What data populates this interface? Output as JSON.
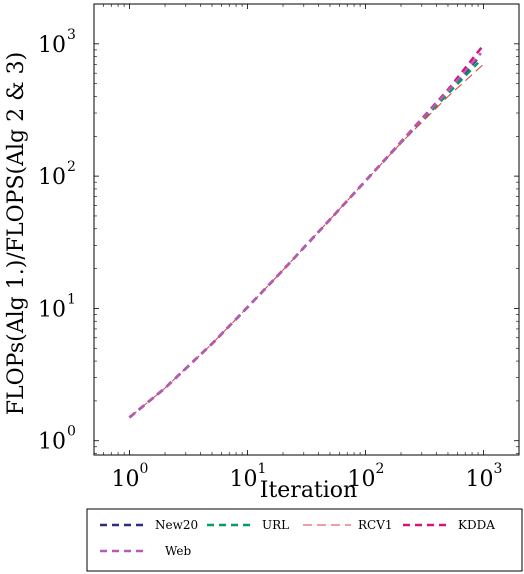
{
  "chart_data": {
    "type": "line",
    "xlabel": "Iteration",
    "ylabel": "FLOPs(Alg 1.)/FLOPS(Alg 2 & 3)",
    "xscale": "log",
    "yscale": "log",
    "xlim": [
      0.5,
      2000
    ],
    "ylim": [
      0.78,
      2000
    ],
    "x_ticks": [
      {
        "value": 1,
        "base": "10",
        "exp": "0"
      },
      {
        "value": 10,
        "base": "10",
        "exp": "1"
      },
      {
        "value": 100,
        "base": "10",
        "exp": "2"
      },
      {
        "value": 1000,
        "base": "10",
        "exp": "3"
      }
    ],
    "y_ticks": [
      {
        "value": 1,
        "base": "10",
        "exp": "0"
      },
      {
        "value": 10,
        "base": "10",
        "exp": "1"
      },
      {
        "value": 100,
        "base": "10",
        "exp": "2"
      },
      {
        "value": 1000,
        "base": "10",
        "exp": "3"
      }
    ],
    "legend_position": "bottom",
    "series": [
      {
        "name": "New20",
        "color": "#2e2e7f",
        "dash": "7,5",
        "width": 2.5,
        "x": [
          1,
          2,
          5,
          10,
          20,
          50,
          100,
          200,
          500,
          880
        ],
        "y": [
          1.5,
          2.5,
          5.4,
          10.2,
          19.5,
          47,
          92,
          180,
          430,
          760
        ]
      },
      {
        "name": "URL",
        "color": "#009e60",
        "dash": "7,5",
        "width": 2.5,
        "x": [
          1,
          2,
          5,
          10,
          20,
          50,
          100,
          200,
          500,
          900
        ],
        "y": [
          1.5,
          2.5,
          5.4,
          10.2,
          19.5,
          47,
          92,
          180,
          420,
          720
        ]
      },
      {
        "name": "RCV1",
        "color": "#e03c3c",
        "dash": "9,5",
        "width": 1,
        "x": [
          1,
          2,
          5,
          10,
          20,
          50,
          100,
          200,
          500,
          1000
        ],
        "y": [
          1.5,
          2.5,
          5.4,
          10.2,
          19.5,
          47,
          92,
          178,
          400,
          700
        ]
      },
      {
        "name": "KDDA",
        "color": "#d6157a",
        "dash": "7,5",
        "width": 2.5,
        "x": [
          1,
          2,
          5,
          10,
          20,
          50,
          100,
          200,
          500,
          1000
        ],
        "y": [
          1.5,
          2.5,
          5.4,
          10.2,
          19.5,
          47,
          92,
          182,
          450,
          980
        ]
      },
      {
        "name": "Web",
        "color": "#b75ab5",
        "dash": "7,5",
        "width": 2.5,
        "x": [
          1,
          2,
          5,
          10,
          20,
          50,
          100,
          200,
          500,
          950
        ],
        "y": [
          1.5,
          2.5,
          5.4,
          10.2,
          19.5,
          47,
          92,
          181,
          440,
          850
        ]
      }
    ]
  }
}
